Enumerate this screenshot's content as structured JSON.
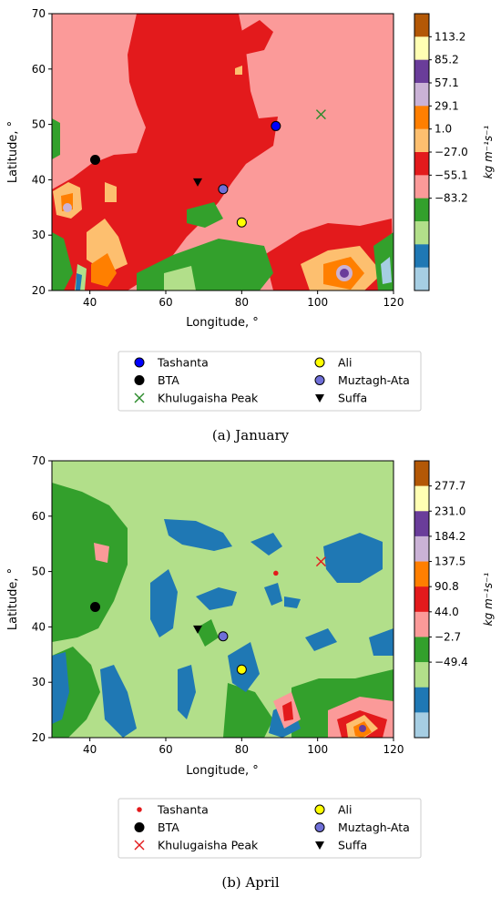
{
  "chart_data": [
    {
      "type": "heatmap",
      "title": "",
      "xlabel": "Longitude, °",
      "ylabel": "Latitude, °",
      "xlim": [
        30,
        120
      ],
      "ylim": [
        20,
        70
      ],
      "xticks": [
        40,
        60,
        80,
        100,
        120
      ],
      "yticks": [
        20,
        30,
        40,
        50,
        60,
        70
      ],
      "colorbar_label": "kg m⁻¹s⁻¹",
      "colorbar_levels": [
        "113.2",
        "85.2",
        "57.1",
        "29.1",
        "1.0",
        "−27.0",
        "−55.1",
        "−83.2"
      ],
      "colorbar_colors": [
        "#b35806",
        "#ffffb3",
        "#6a3d9a",
        "#cab2d6",
        "#ff7f00",
        "#fdbf6f",
        "#e31a1c",
        "#fb9a99",
        "#33a02c",
        "#b2df8a",
        "#1f78b4",
        "#a6cee3"
      ],
      "caption_tag": "(a)",
      "caption_text": "January",
      "stations": [
        {
          "name": "Tashanta",
          "lon": 89.0,
          "lat": 49.7,
          "marker": "circle",
          "color": "#0000ff"
        },
        {
          "name": "BTA",
          "lon": 41.4,
          "lat": 43.6,
          "marker": "circle",
          "color": "#000000"
        },
        {
          "name": "Khulugaisha Peak",
          "lon": 100.9,
          "lat": 51.8,
          "marker": "x",
          "color": "#2a8a2a"
        },
        {
          "name": "Ali",
          "lon": 80.0,
          "lat": 32.3,
          "marker": "circle",
          "color": "#ffff00"
        },
        {
          "name": "Muztagh-Ata",
          "lon": 75.1,
          "lat": 38.3,
          "marker": "circle",
          "color": "#6f6fd8"
        },
        {
          "name": "Suffa",
          "lon": 68.4,
          "lat": 39.6,
          "marker": "triangle-down",
          "color": "#000000"
        }
      ]
    },
    {
      "type": "heatmap",
      "title": "",
      "xlabel": "Longitude, °",
      "ylabel": "Latitude, °",
      "xlim": [
        30,
        120
      ],
      "ylim": [
        20,
        70
      ],
      "xticks": [
        40,
        60,
        80,
        100,
        120
      ],
      "yticks": [
        20,
        30,
        40,
        50,
        60,
        70
      ],
      "colorbar_label": "kg m⁻¹s⁻¹",
      "colorbar_levels": [
        "277.7",
        "231.0",
        "184.2",
        "137.5",
        "90.8",
        "44.0",
        "−2.7",
        "−49.4"
      ],
      "colorbar_colors": [
        "#b35806",
        "#ffffb3",
        "#6a3d9a",
        "#cab2d6",
        "#ff7f00",
        "#e31a1c",
        "#fb9a99",
        "#33a02c",
        "#b2df8a",
        "#1f78b4",
        "#a6cee3"
      ],
      "caption_tag": "(b)",
      "caption_text": "April",
      "stations": [
        {
          "name": "Tashanta",
          "lon": 89.0,
          "lat": 49.7,
          "marker": "dot",
          "color": "#e31a1c"
        },
        {
          "name": "BTA",
          "lon": 41.4,
          "lat": 43.6,
          "marker": "circle",
          "color": "#000000"
        },
        {
          "name": "Khulugaisha Peak",
          "lon": 100.9,
          "lat": 51.8,
          "marker": "x",
          "color": "#e31a1c"
        },
        {
          "name": "Ali",
          "lon": 80.0,
          "lat": 32.3,
          "marker": "circle",
          "color": "#ffff00"
        },
        {
          "name": "Muztagh-Ata",
          "lon": 75.1,
          "lat": 38.3,
          "marker": "circle",
          "color": "#6f6fd8"
        },
        {
          "name": "Suffa",
          "lon": 68.4,
          "lat": 39.6,
          "marker": "triangle-down",
          "color": "#000000"
        }
      ]
    }
  ]
}
